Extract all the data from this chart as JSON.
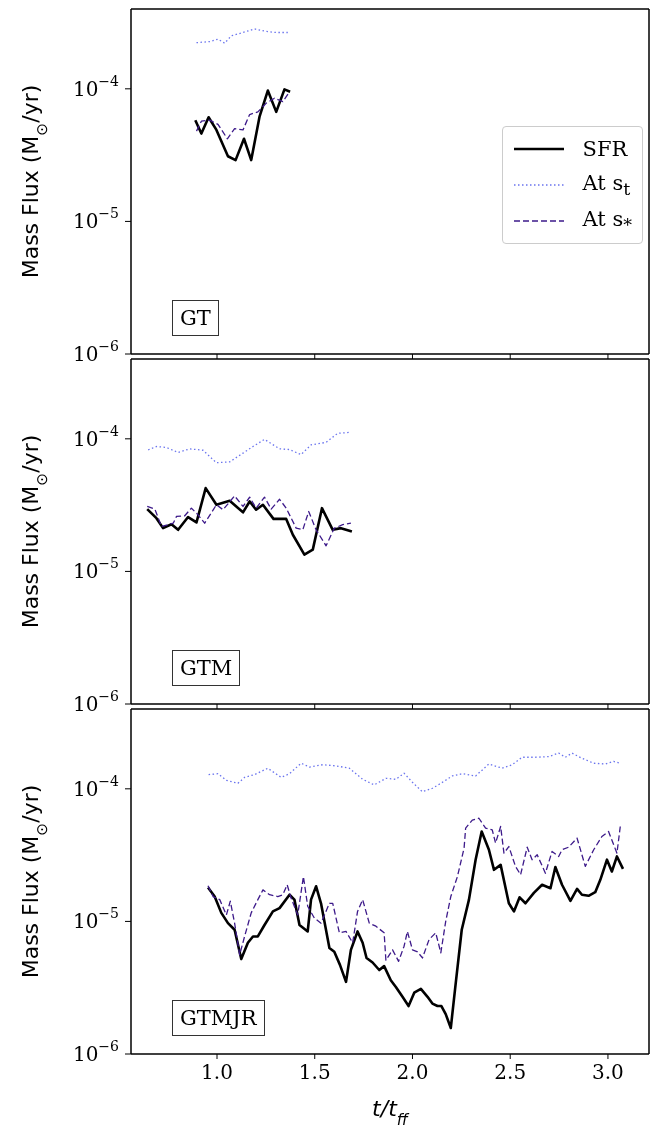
{
  "chart_data": [
    {
      "type": "line",
      "ylabel": "Mass Flux (M$_{⊙}$/yr)",
      "log": "y",
      "legend": "right",
      "tick_labels": "y",
      "annotations": [
        "GT"
      ],
      "xlim": [
        0.56,
        3.21
      ],
      "ylim": [
        1e-06,
        0.0004
      ],
      "xticks": [
        1,
        1.5,
        2,
        2.5,
        3
      ],
      "yticks": [
        {
          "value": 1e-06,
          "label": "10$^{−6}$"
        },
        {
          "value": 1e-05,
          "label": "10$^{−5}$"
        },
        {
          "value": 0.0001,
          "label": "10$^{−4}$"
        }
      ],
      "series": [
        {
          "name": "SFR",
          "color": "#000000",
          "line_style": "solid",
          "x": [
            0.889,
            0.92,
            0.957,
            0.997,
            1.056,
            1.095,
            1.138,
            1.175,
            1.218,
            1.26,
            1.303,
            1.345,
            1.374
          ],
          "values": [
            5.8e-05,
            4.6e-05,
            6.1e-05,
            4.9e-05,
            3.1e-05,
            2.9e-05,
            4.2e-05,
            2.9e-05,
            6.2e-05,
            9.7e-05,
            6.7e-05,
            9.9e-05,
            9.5e-05
          ]
        },
        {
          "name": "At s$_{t}$",
          "color": "#6a74ee",
          "line_style": "dotted",
          "x": [
            0.895,
            0.963,
            1.005,
            1.039,
            1.073,
            1.133,
            1.192,
            1.252,
            1.303,
            1.362
          ],
          "values": [
            0.000223,
            0.000227,
            0.000237,
            0.000221,
            0.000251,
            0.000266,
            0.000283,
            0.000271,
            0.000266,
            0.000266
          ]
        },
        {
          "name": "At s$_{*}$",
          "color": "#3d1a8a",
          "line_style": "dashed",
          "x": [
            0.895,
            0.92,
            0.963,
            1.005,
            1.053,
            1.09,
            1.133,
            1.167,
            1.209,
            1.252,
            1.294,
            1.337,
            1.367
          ],
          "values": [
            4.8e-05,
            5.7e-05,
            5.8e-05,
            5.4e-05,
            4.2e-05,
            5e-05,
            4.9e-05,
            6.4e-05,
            6.7e-05,
            7.8e-05,
            8.5e-05,
            8e-05,
            9.3e-05
          ]
        }
      ]
    },
    {
      "type": "line",
      "ylabel": "Mass Flux (M$_{⊙}$/yr)",
      "log": "y",
      "tick_labels": "y",
      "annotations": [
        "GTM"
      ],
      "xlim": [
        0.56,
        3.21
      ],
      "ylim": [
        1e-06,
        0.0004
      ],
      "xticks": [
        1,
        1.5,
        2,
        2.5,
        3
      ],
      "yticks": [
        {
          "value": 1e-06,
          "label": "10$^{−6}$"
        },
        {
          "value": 1e-05,
          "label": "10$^{−5}$"
        },
        {
          "value": 0.0001,
          "label": "10$^{−4}$"
        }
      ],
      "series": [
        {
          "color": "#000000",
          "line_style": "solid",
          "x": [
            0.643,
            0.69,
            0.724,
            0.767,
            0.801,
            0.852,
            0.895,
            0.942,
            0.997,
            1.065,
            1.133,
            1.167,
            1.2,
            1.235,
            1.289,
            1.354,
            1.388,
            1.447,
            1.49,
            1.537,
            1.592,
            1.634,
            1.69
          ],
          "values": [
            2.95e-05,
            2.52e-05,
            2.12e-05,
            2.27e-05,
            2.06e-05,
            2.57e-05,
            2.34e-05,
            4.25e-05,
            3.18e-05,
            3.41e-05,
            2.79e-05,
            3.37e-05,
            2.92e-05,
            3.18e-05,
            2.49e-05,
            2.49e-05,
            1.89e-05,
            1.34e-05,
            1.46e-05,
            3e-05,
            2.06e-05,
            2.12e-05,
            2e-05
          ]
        },
        {
          "color": "#6a74ee",
          "line_style": "dotted",
          "x": [
            0.648,
            0.69,
            0.741,
            0.801,
            0.861,
            0.929,
            0.997,
            1.065,
            1.133,
            1.184,
            1.243,
            1.32,
            1.371,
            1.43,
            1.481,
            1.558,
            1.617,
            1.685
          ],
          "values": [
            8.26e-05,
            8.75e-05,
            8.6e-05,
            7.9e-05,
            8.4e-05,
            8.2e-05,
            6.6e-05,
            6.7e-05,
            7.8e-05,
            8.75e-05,
            9.9e-05,
            8.4e-05,
            8.3e-05,
            7.6e-05,
            9e-05,
            9.4e-05,
            0.00011,
            0.000112
          ]
        },
        {
          "color": "#3d1a8a",
          "line_style": "dashed",
          "x": [
            0.643,
            0.682,
            0.716,
            0.776,
            0.793,
            0.835,
            0.869,
            0.903,
            0.937,
            0.997,
            1.031,
            1.09,
            1.133,
            1.167,
            1.2,
            1.243,
            1.277,
            1.32,
            1.354,
            1.405,
            1.439,
            1.469,
            1.507,
            1.558,
            1.6,
            1.643,
            1.685
          ],
          "values": [
            3.09e-05,
            2.95e-05,
            2.18e-05,
            2.31e-05,
            2.6e-05,
            2.63e-05,
            3e-05,
            2.67e-05,
            2.31e-05,
            3.18e-05,
            2.92e-05,
            3.71e-05,
            3.09e-05,
            3.63e-05,
            3e-05,
            3.63e-05,
            2.95e-05,
            3.5e-05,
            3e-05,
            2.12e-05,
            2.06e-05,
            2.83e-05,
            2.06e-05,
            1.56e-05,
            2.12e-05,
            2.25e-05,
            2.31e-05
          ]
        }
      ]
    },
    {
      "type": "line",
      "ylabel": "Mass Flux (M$_{⊙}$/yr)",
      "xlabel": "t/t$_{ff}$",
      "log": "y",
      "annotations": [
        "GTMJR"
      ],
      "xlim": [
        0.56,
        3.21
      ],
      "ylim": [
        1e-06,
        0.0004
      ],
      "xticks": [
        {
          "value": 1,
          "label": "1.0"
        },
        {
          "value": 1.5,
          "label": "1.5"
        },
        {
          "value": 2,
          "label": "2.0"
        },
        {
          "value": 2.5,
          "label": "2.5"
        },
        {
          "value": 3,
          "label": "3.0"
        }
      ],
      "yticks": [
        {
          "value": 1e-06,
          "label": "10$^{−6}$"
        },
        {
          "value": 1e-05,
          "label": "10$^{−5}$"
        },
        {
          "value": 0.0001,
          "label": "10$^{−4}$"
        }
      ],
      "series": [
        {
          "color": "#000000",
          "line_style": "solid",
          "x": [
            0.954,
            0.988,
            1.022,
            1.056,
            1.09,
            1.124,
            1.158,
            1.184,
            1.209,
            1.243,
            1.286,
            1.32,
            1.371,
            1.396,
            1.422,
            1.464,
            1.481,
            1.507,
            1.532,
            1.575,
            1.6,
            1.629,
            1.66,
            1.685,
            1.719,
            1.745,
            1.765,
            1.796,
            1.83,
            1.855,
            1.889,
            1.915,
            1.949,
            1.98,
            2.009,
            2.043,
            2.077,
            2.102,
            2.128,
            2.148,
            2.17,
            2.196,
            2.221,
            2.252,
            2.289,
            2.323,
            2.354,
            2.391,
            2.417,
            2.451,
            2.493,
            2.519,
            2.548,
            2.578,
            2.621,
            2.663,
            2.706,
            2.731,
            2.765,
            2.808,
            2.842,
            2.867,
            2.901,
            2.935,
            2.961,
            2.995,
            3.02,
            3.046,
            3.077
          ],
          "values": [
            1.8e-05,
            1.54e-05,
            1.16e-05,
            9.7e-06,
            8.65e-06,
            5.2e-06,
            6.9e-06,
            7.7e-06,
            7.7e-06,
            9.4e-06,
            1.19e-05,
            1.26e-05,
            1.59e-05,
            1.46e-05,
            9.4e-06,
            8.4e-06,
            1.46e-05,
            1.84e-05,
            1.37e-05,
            6.3e-06,
            5.9e-06,
            4.7e-06,
            3.5e-06,
            6.1e-06,
            8.4e-06,
            6.9e-06,
            5.3e-06,
            4.9e-06,
            4.3e-06,
            4.6e-06,
            3.6e-06,
            3.2e-06,
            2.7e-06,
            2.3e-06,
            2.9e-06,
            3.1e-06,
            2.7e-06,
            2.4e-06,
            2.3e-06,
            2.3e-06,
            2e-06,
            1.57e-06,
            3.4e-06,
            8.65e-06,
            1.46e-05,
            2.92e-05,
            4.77e-05,
            3.47e-05,
            2.45e-05,
            2.67e-05,
            1.37e-05,
            1.19e-05,
            1.52e-05,
            1.37e-05,
            1.64e-05,
            1.89e-05,
            1.78e-05,
            2.57e-05,
            1.89e-05,
            1.43e-05,
            1.76e-05,
            1.59e-05,
            1.56e-05,
            1.66e-05,
            2.06e-05,
            2.92e-05,
            2.38e-05,
            3.09e-05,
            2.49e-05
          ]
        },
        {
          "color": "#6a74ee",
          "line_style": "dotted",
          "x": [
            0.957,
            1.005,
            1.048,
            1.107,
            1.141,
            1.192,
            1.26,
            1.328,
            1.371,
            1.43,
            1.473,
            1.541,
            1.609,
            1.677,
            1.745,
            1.804,
            1.864,
            1.915,
            1.957,
            2.0,
            2.051,
            2.102,
            2.145,
            2.204,
            2.255,
            2.323,
            2.391,
            2.459,
            2.51,
            2.561,
            2.629,
            2.697,
            2.748,
            2.782,
            2.816,
            2.867,
            2.927,
            2.986,
            3.029,
            3.063
          ],
          "values": [
            0.000128,
            0.00013,
            0.000116,
            0.00011,
            0.000122,
            0.000128,
            0.000143,
            0.000122,
            0.00013,
            0.000156,
            0.000146,
            0.000152,
            0.000149,
            0.000143,
            0.000118,
            0.000107,
            0.00012,
            0.000118,
            0.000131,
            0.000112,
            9.5e-05,
            0.000101,
            0.00011,
            0.000125,
            0.00013,
            0.000125,
            0.000154,
            0.000143,
            0.000152,
            0.000173,
            0.000173,
            0.000175,
            0.000186,
            0.000173,
            0.000186,
            0.00017,
            0.000156,
            0.000154,
            0.000161,
            0.000156
          ]
        },
        {
          "color": "#3d1a8a",
          "line_style": "dashed",
          "x": [
            0.954,
            0.98,
            1.014,
            1.048,
            1.068,
            1.09,
            1.116,
            1.141,
            1.175,
            1.209,
            1.235,
            1.269,
            1.311,
            1.337,
            1.359,
            1.379,
            1.413,
            1.442,
            1.464,
            1.498,
            1.532,
            1.575,
            1.592,
            1.626,
            1.66,
            1.694,
            1.719,
            1.745,
            1.779,
            1.813,
            1.855,
            1.864,
            1.898,
            1.929,
            1.957,
            1.974,
            2.0,
            2.026,
            2.051,
            2.085,
            2.119,
            2.145,
            2.17,
            2.196,
            2.23,
            2.264,
            2.272,
            2.306,
            2.34,
            2.374,
            2.408,
            2.425,
            2.451,
            2.468,
            2.493,
            2.527,
            2.553,
            2.587,
            2.612,
            2.638,
            2.68,
            2.714,
            2.748,
            2.765,
            2.799,
            2.842,
            2.884,
            2.927,
            2.969,
            3.003,
            3.046,
            3.063
          ],
          "values": [
            1.86e-05,
            1.54e-05,
            1.46e-05,
            1.12e-05,
            1.42e-05,
            9.7e-06,
            5.6e-06,
            7.7e-06,
            1.16e-05,
            1.46e-05,
            1.73e-05,
            1.59e-05,
            1.54e-05,
            1.59e-05,
            1.89e-05,
            1.5e-05,
            1.12e-05,
            2.18e-05,
            1.3e-05,
            1.06e-05,
            9.7e-06,
            1.37e-05,
            1.37e-05,
            8.2e-06,
            8.4e-06,
            6.9e-06,
            1.19e-05,
            1.46e-05,
            9.7e-06,
            9.2e-06,
            8.2e-06,
            5.1e-06,
            6.1e-06,
            5e-06,
            6.5e-06,
            8.4e-06,
            6.1e-06,
            5.9e-06,
            5.3e-06,
            7.3e-06,
            8.2e-06,
            5.8e-06,
            1e-05,
            1.54e-05,
            2.18e-05,
            3.57e-05,
            5.06e-05,
            5.8e-05,
            6e-05,
            5.06e-05,
            4.9e-05,
            3.9e-05,
            5.2e-05,
            3.27e-05,
            3.67e-05,
            2.6e-05,
            2.25e-05,
            3.63e-05,
            2.92e-05,
            3.18e-05,
            2.31e-05,
            3.37e-05,
            3.09e-05,
            3.47e-05,
            3.63e-05,
            4.25e-05,
            2.6e-05,
            3.47e-05,
            4.37e-05,
            4.77e-05,
            3.27e-05,
            5.2e-05
          ]
        }
      ]
    }
  ]
}
